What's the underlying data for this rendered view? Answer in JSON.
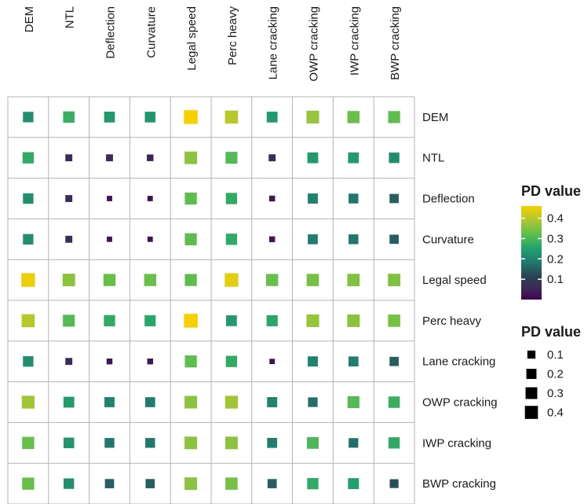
{
  "chart_data": {
    "type": "heatmap",
    "variables": [
      "DEM",
      "NTL",
      "Deflection",
      "Curvature",
      "Legal speed",
      "Perc heavy",
      "Lane cracking",
      "OWP cracking",
      "IWP cracking",
      "BWP cracking"
    ],
    "values": [
      [
        0.22,
        0.28,
        0.24,
        0.23,
        0.46,
        0.4,
        0.24,
        0.37,
        0.33,
        0.32
      ],
      [
        0.27,
        0.06,
        0.06,
        0.05,
        0.36,
        0.31,
        0.06,
        0.24,
        0.24,
        0.22
      ],
      [
        0.22,
        0.06,
        0.02,
        0.02,
        0.32,
        0.27,
        0.03,
        0.2,
        0.18,
        0.15
      ],
      [
        0.22,
        0.06,
        0.02,
        0.02,
        0.32,
        0.27,
        0.03,
        0.19,
        0.18,
        0.15
      ],
      [
        0.45,
        0.36,
        0.33,
        0.33,
        0.32,
        0.44,
        0.33,
        0.34,
        0.35,
        0.35
      ],
      [
        0.4,
        0.31,
        0.27,
        0.26,
        0.46,
        0.24,
        0.26,
        0.37,
        0.36,
        0.34
      ],
      [
        0.22,
        0.06,
        0.03,
        0.03,
        0.32,
        0.27,
        0.02,
        0.2,
        0.19,
        0.15
      ],
      [
        0.38,
        0.24,
        0.2,
        0.19,
        0.36,
        0.38,
        0.2,
        0.17,
        0.31,
        0.28
      ],
      [
        0.33,
        0.23,
        0.18,
        0.18,
        0.36,
        0.36,
        0.19,
        0.3,
        0.17,
        0.27
      ],
      [
        0.33,
        0.22,
        0.15,
        0.15,
        0.36,
        0.34,
        0.15,
        0.27,
        0.25,
        0.13
      ]
    ],
    "color_legend": {
      "title": "PD value",
      "ticks": [
        "0.1",
        "0.2",
        "0.3",
        "0.4"
      ],
      "min": 0.0,
      "max": 0.46
    },
    "size_legend": {
      "title": "PD value",
      "ticks": [
        "0.1",
        "0.2",
        "0.3",
        "0.4"
      ],
      "values": [
        0.1,
        0.2,
        0.3,
        0.4
      ]
    },
    "legend_position": "right",
    "colors": [
      "#440154",
      "#3b2a56",
      "#2b3f52",
      "#21918c",
      "#22a36e",
      "#5fbf4d",
      "#9ccc3c",
      "#cfc516",
      "#f7d000"
    ]
  }
}
